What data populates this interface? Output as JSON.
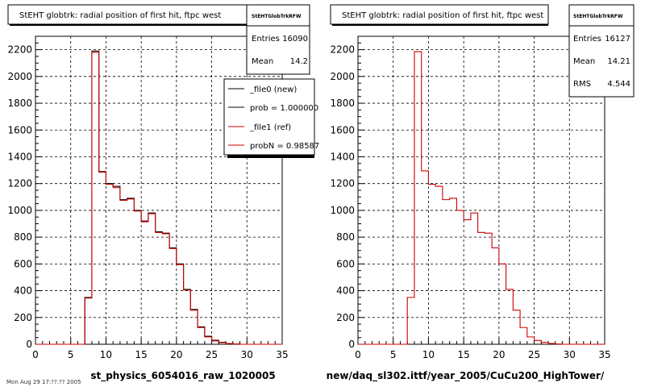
{
  "colors": {
    "new": "#000000",
    "ref": "#cc0000",
    "grid": "#000000"
  },
  "panels": [
    {
      "title": "StEHT globtrk: radial position of first hit, ftpc west",
      "stats": {
        "name": "StEHTGlobTrkRFW",
        "rows": [
          {
            "label": "Entries",
            "value": "16090"
          },
          {
            "label": "Mean",
            "value": "14.2"
          }
        ]
      },
      "legend": [
        {
          "label": "_file0 (new)",
          "color": "#000000"
        },
        {
          "label": "prob = 1.000000",
          "color": "#000000"
        },
        {
          "label": "_file1 (ref)",
          "color": "#cc0000"
        },
        {
          "label": "probN = 0.98587",
          "color": "#cc0000"
        }
      ],
      "xlabel": "st_physics_6054016_raw_1020005",
      "footer": "Mon Aug 29 17:??:?? 2005"
    },
    {
      "title": "StEHT globtrk: radial position of first hit, ftpc west",
      "stats": {
        "name": "StEHTGlobTrkRFW",
        "rows": [
          {
            "label": "Entries",
            "value": "16127"
          },
          {
            "label": "Mean",
            "value": "14.21"
          },
          {
            "label": "RMS",
            "value": "4.544"
          }
        ]
      },
      "legend": [],
      "xlabel": "new/daq_sl302.ittf/year_2005/CuCu200_HighTower/"
    }
  ],
  "chart_data": [
    {
      "type": "area",
      "title": "StEHT globtrk: radial position of first hit, ftpc west",
      "xlabel": "st_physics_6054016_raw_1020005",
      "xlim": [
        0,
        35
      ],
      "ylim": [
        0,
        2300
      ],
      "xticks": [
        0,
        5,
        10,
        15,
        20,
        25,
        30,
        35
      ],
      "yticks": [
        0,
        200,
        400,
        600,
        800,
        1000,
        1200,
        1400,
        1600,
        1800,
        2000,
        2200
      ],
      "grid": true,
      "legend_position": "top-right",
      "bin_width": 1,
      "bin_start": 0,
      "series": [
        {
          "name": "_file0 (new)",
          "color": "#000000",
          "values": [
            0,
            0,
            0,
            0,
            0,
            0,
            0,
            350,
            2190,
            1290,
            1200,
            1180,
            1080,
            1090,
            1000,
            920,
            980,
            840,
            830,
            720,
            600,
            410,
            260,
            130,
            60,
            30,
            15,
            6,
            2,
            0,
            0,
            0,
            0,
            0,
            0
          ]
        },
        {
          "name": "_file1 (ref)",
          "color": "#cc0000",
          "values": [
            0,
            0,
            0,
            0,
            0,
            0,
            0,
            345,
            2180,
            1285,
            1195,
            1170,
            1075,
            1085,
            995,
            915,
            975,
            835,
            825,
            715,
            595,
            405,
            255,
            125,
            55,
            25,
            12,
            5,
            2,
            0,
            0,
            0,
            0,
            0,
            0
          ]
        }
      ]
    },
    {
      "type": "area",
      "title": "StEHT globtrk: radial position of first hit, ftpc west",
      "xlabel": "new/daq_sl302.ittf/year_2005/CuCu200_HighTower/",
      "xlim": [
        0,
        35
      ],
      "ylim": [
        0,
        2300
      ],
      "xticks": [
        0,
        5,
        10,
        15,
        20,
        25,
        30,
        35
      ],
      "yticks": [
        0,
        200,
        400,
        600,
        800,
        1000,
        1200,
        1400,
        1600,
        1800,
        2000,
        2200
      ],
      "grid": true,
      "bin_width": 1,
      "bin_start": 0,
      "series": [
        {
          "color": "#cc0000",
          "values": [
            0,
            0,
            0,
            0,
            0,
            0,
            0,
            350,
            2185,
            1295,
            1195,
            1180,
            1080,
            1090,
            1000,
            930,
            980,
            835,
            830,
            720,
            600,
            410,
            255,
            125,
            55,
            28,
            14,
            6,
            2,
            0,
            0,
            0,
            0,
            0,
            0
          ]
        }
      ]
    }
  ]
}
